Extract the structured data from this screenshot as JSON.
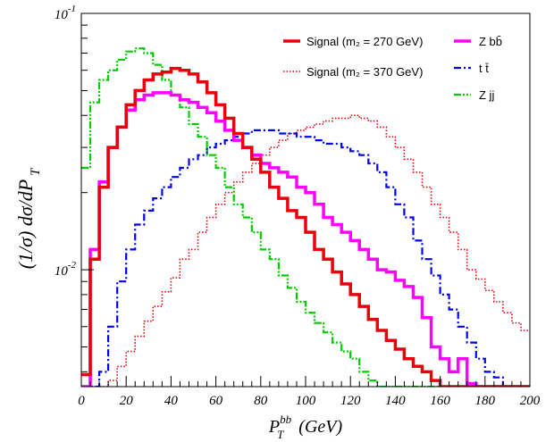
{
  "chart_data": {
    "type": "line",
    "step": true,
    "xlabel": {
      "main": "P",
      "sup": "bb",
      "sub": "T",
      "unit": " (GeV)"
    },
    "ylabel": {
      "main": "(1/σ) dσ/dP",
      "sub": "T"
    },
    "xlim": [
      0,
      200
    ],
    "ylim": [
      0.0035,
      0.1
    ],
    "yscale": "log",
    "grid": false,
    "legend_placement": "top-right",
    "x_ticks": [
      "0",
      "20",
      "40",
      "60",
      "80",
      "100",
      "120",
      "140",
      "160",
      "180",
      "200"
    ],
    "y_ticks": [
      {
        "value": 0.01,
        "base": "10",
        "exp": "-2"
      },
      {
        "value": 0.1,
        "base": "10",
        "exp": "-1"
      }
    ],
    "x_edges": [
      0,
      4,
      8,
      12,
      16,
      20,
      24,
      28,
      32,
      36,
      40,
      44,
      48,
      52,
      56,
      60,
      64,
      68,
      72,
      76,
      80,
      84,
      88,
      92,
      96,
      100,
      104,
      108,
      112,
      116,
      120,
      124,
      128,
      132,
      136,
      140,
      144,
      148,
      152,
      156,
      160,
      164,
      168,
      172,
      176,
      180,
      184,
      188,
      192,
      196,
      200
    ],
    "series": [
      {
        "name": "Signal (m₂ = 270 GeV)",
        "color": "#e8000b",
        "style": "solid",
        "values": [
          0.0039,
          0.011,
          0.021,
          0.03,
          0.036,
          0.044,
          0.05,
          0.055,
          0.058,
          0.059,
          0.061,
          0.06,
          0.058,
          0.054,
          0.049,
          0.044,
          0.039,
          0.034,
          0.03,
          0.027,
          0.024,
          0.021,
          0.019,
          0.017,
          0.016,
          0.014,
          0.012,
          0.011,
          0.0098,
          0.0088,
          0.008,
          0.0072,
          0.0064,
          0.0058,
          0.0053,
          0.0049,
          0.0045,
          0.0042,
          0.004,
          0.0037,
          0.0035,
          0.0033,
          0.0033,
          0.0033,
          0.0033,
          0.0033,
          0.0033,
          0.0033,
          0.0033,
          0.0033
        ]
      },
      {
        "name": "Signal (m₂ = 370 GeV)",
        "color": "#e8000b",
        "style": "dotted",
        "values": [
          0.0033,
          0.0033,
          0.0033,
          0.0037,
          0.0042,
          0.0048,
          0.0055,
          0.0063,
          0.0072,
          0.0082,
          0.0093,
          0.011,
          0.012,
          0.014,
          0.016,
          0.018,
          0.02,
          0.022,
          0.024,
          0.026,
          0.028,
          0.03,
          0.032,
          0.034,
          0.035,
          0.036,
          0.037,
          0.038,
          0.039,
          0.039,
          0.04,
          0.039,
          0.038,
          0.036,
          0.033,
          0.03,
          0.027,
          0.024,
          0.021,
          0.018,
          0.016,
          0.014,
          0.012,
          0.01,
          0.0092,
          0.0083,
          0.0075,
          0.0068,
          0.0062,
          0.0058
        ]
      },
      {
        "name": "Z bb̄",
        "color": "#ff00ff",
        "style": "solid",
        "values": [
          0.0033,
          0.012,
          0.022,
          0.03,
          0.036,
          0.042,
          0.046,
          0.048,
          0.049,
          0.049,
          0.048,
          0.046,
          0.045,
          0.043,
          0.041,
          0.038,
          0.035,
          0.032,
          0.03,
          0.028,
          0.026,
          0.025,
          0.024,
          0.023,
          0.021,
          0.02,
          0.018,
          0.016,
          0.015,
          0.014,
          0.013,
          0.012,
          0.011,
          0.01,
          0.0098,
          0.0091,
          0.0086,
          0.0078,
          0.0065,
          0.005,
          0.0045,
          0.004,
          0.0045,
          0.0036,
          0.0033,
          0.0033,
          0.0033,
          0.0033,
          0.0033,
          0.0033
        ]
      },
      {
        "name": "t t̄",
        "color": "#0000ee",
        "style": "dashdot",
        "values": [
          0.0033,
          0.0033,
          0.004,
          0.006,
          0.009,
          0.012,
          0.015,
          0.017,
          0.019,
          0.021,
          0.023,
          0.025,
          0.027,
          0.028,
          0.03,
          0.031,
          0.032,
          0.033,
          0.034,
          0.035,
          0.035,
          0.035,
          0.034,
          0.034,
          0.033,
          0.033,
          0.032,
          0.031,
          0.031,
          0.03,
          0.029,
          0.028,
          0.026,
          0.024,
          0.021,
          0.018,
          0.016,
          0.013,
          0.011,
          0.0095,
          0.008,
          0.007,
          0.006,
          0.0052,
          0.0045,
          0.004,
          0.0038,
          0.0035,
          0.0033,
          0.0033
        ]
      },
      {
        "name": "Z jj",
        "color": "#00cc00",
        "style": "dashdotdot",
        "values": [
          0.025,
          0.045,
          0.055,
          0.06,
          0.066,
          0.071,
          0.073,
          0.07,
          0.063,
          0.055,
          0.048,
          0.043,
          0.037,
          0.033,
          0.028,
          0.025,
          0.021,
          0.018,
          0.016,
          0.014,
          0.012,
          0.011,
          0.0095,
          0.0085,
          0.0075,
          0.0068,
          0.0062,
          0.0057,
          0.0052,
          0.0048,
          0.0045,
          0.004,
          0.0037,
          0.0035,
          0.0033,
          0.0033,
          0.0033,
          0.0033,
          0.0033,
          0.0033,
          0.0033,
          0.0033,
          0.0033,
          0.0033,
          0.0033,
          0.0033,
          0.0033,
          0.0033,
          0.0033,
          0.0033
        ]
      }
    ]
  }
}
